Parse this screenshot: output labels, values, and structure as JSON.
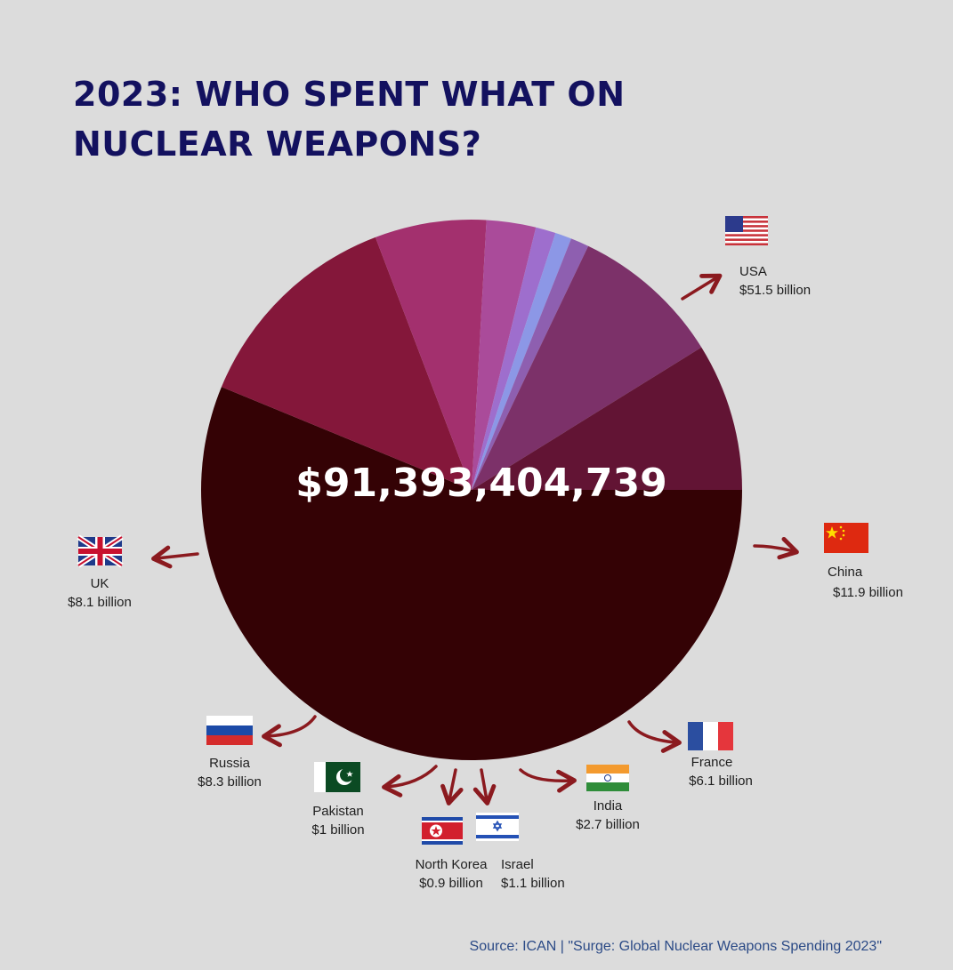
{
  "title": {
    "line1": "2023: WHO SPENT WHAT ON",
    "line2": "NUCLEAR WEAPONS?"
  },
  "total": "$91,393,404,739",
  "source": "Source: ICAN | \"Surge: Global Nuclear Weapons Spending 2023\"",
  "chart_data": {
    "type": "pie",
    "unit": "billion USD",
    "total_label": "$91,393,404,739",
    "start_angle_deg": 0,
    "direction": "clockwise",
    "slices": [
      {
        "name": "USA",
        "value": 51.5,
        "label": "$51.5 billion",
        "color": "#340205",
        "flag": "flag-usa-icon"
      },
      {
        "name": "China",
        "value": 11.9,
        "label": "$11.9 billion",
        "color": "#84173a",
        "flag": "flag-china-icon"
      },
      {
        "name": "France",
        "value": 6.1,
        "label": "$6.1 billion",
        "color": "#a3306e",
        "flag": "flag-france-icon"
      },
      {
        "name": "India",
        "value": 2.7,
        "label": "$2.7 billion",
        "color": "#aa4b9a",
        "flag": "flag-india-icon"
      },
      {
        "name": "Israel",
        "value": 1.1,
        "label": "$1.1 billion",
        "color": "#9e6ecd",
        "flag": "flag-israel-icon"
      },
      {
        "name": "North Korea",
        "value": 0.9,
        "label": "$0.9 billion",
        "color": "#8c97e6",
        "flag": "flag-north-korea-icon"
      },
      {
        "name": "Pakistan",
        "value": 1.0,
        "label": "$1 billion",
        "color": "#8e5fb0",
        "flag": "flag-pakistan-icon"
      },
      {
        "name": "Russia",
        "value": 8.3,
        "label": "$8.3 billion",
        "color": "#7c3169",
        "flag": "flag-russia-icon"
      },
      {
        "name": "UK",
        "value": 8.1,
        "label": "$8.1 billion",
        "color": "#621434",
        "flag": "flag-uk-icon"
      }
    ]
  }
}
